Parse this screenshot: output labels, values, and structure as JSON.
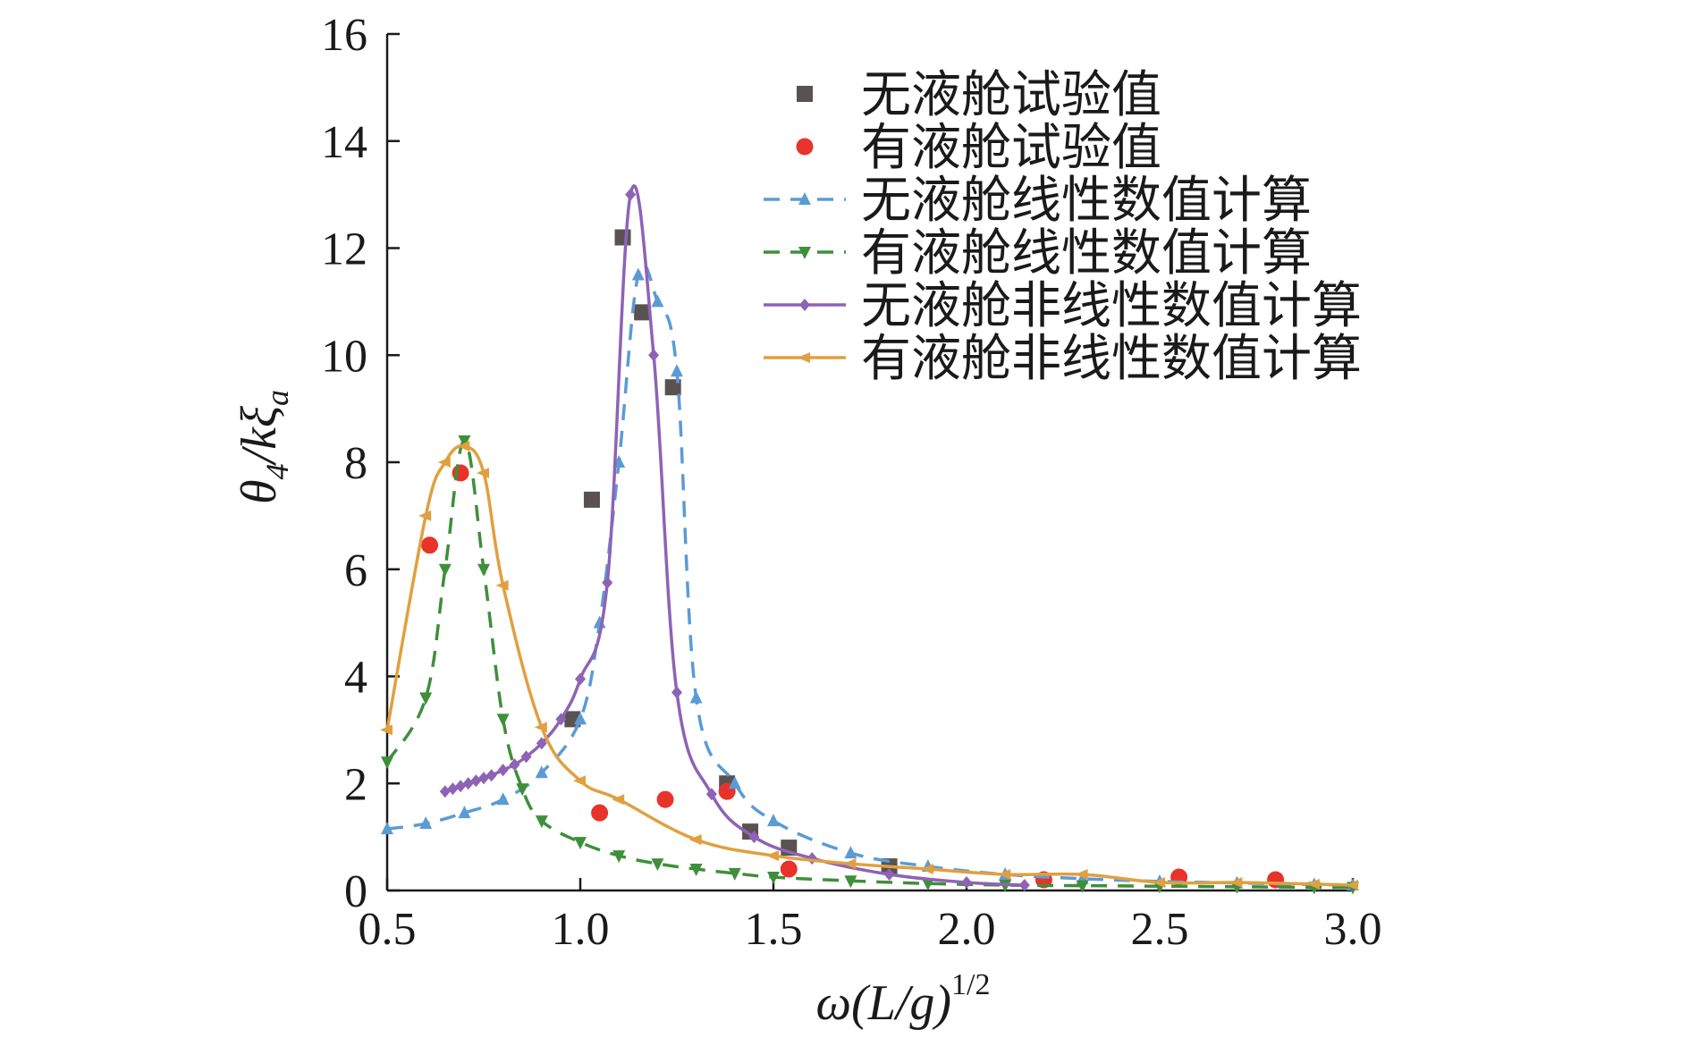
{
  "chart_data": {
    "type": "line",
    "xlabel": "ω(L/g)",
    "xlabel_sup": "1/2",
    "ylabel": "θ",
    "ylabel_sub": "4",
    "ylabel_rest": "/kξ",
    "ylabel_sub2": "a",
    "xlim": [
      0.5,
      3.0
    ],
    "ylim": [
      0,
      16
    ],
    "xticks": [
      "0.5",
      "1.0",
      "1.5",
      "2.0",
      "2.5",
      "3.0"
    ],
    "yticks": [
      "0",
      "2",
      "4",
      "6",
      "8",
      "10",
      "12",
      "14",
      "16"
    ],
    "grid": false,
    "legend_position": "top-right",
    "series": [
      {
        "name": "无液舱试验值",
        "kind": "scatter",
        "marker": "square",
        "color": "#595251",
        "x": [
          0.98,
          1.03,
          1.11,
          1.16,
          1.24,
          1.38,
          1.44,
          1.54,
          1.8
        ],
        "y": [
          3.2,
          7.3,
          12.2,
          10.8,
          9.4,
          2.0,
          1.1,
          0.8,
          0.45
        ]
      },
      {
        "name": "有液舱试验值",
        "kind": "scatter",
        "marker": "circle",
        "color": "#e8332a",
        "x": [
          0.61,
          0.69,
          1.05,
          1.22,
          1.38,
          1.54,
          2.2,
          2.55,
          2.8
        ],
        "y": [
          6.45,
          7.8,
          1.45,
          1.7,
          1.85,
          0.4,
          0.2,
          0.25,
          0.2
        ]
      },
      {
        "name": "无液舱线性数值计算",
        "kind": "line",
        "dash": true,
        "marker": "triangle-up",
        "color": "#5b9bd5",
        "x": [
          0.5,
          0.6,
          0.7,
          0.8,
          0.9,
          1.0,
          1.05,
          1.1,
          1.15,
          1.2,
          1.25,
          1.3,
          1.4,
          1.5,
          1.7,
          1.9,
          2.1,
          2.3,
          2.5,
          2.7,
          2.9,
          3.0
        ],
        "y": [
          1.15,
          1.25,
          1.45,
          1.7,
          2.2,
          3.2,
          5.0,
          8.0,
          11.5,
          11.0,
          9.7,
          3.6,
          2.0,
          1.3,
          0.7,
          0.45,
          0.3,
          0.22,
          0.17,
          0.14,
          0.11,
          0.1
        ]
      },
      {
        "name": "有液舱线性数值计算",
        "kind": "line",
        "dash": true,
        "marker": "triangle-down",
        "color": "#3f8f3a",
        "x": [
          0.5,
          0.6,
          0.65,
          0.7,
          0.75,
          0.8,
          0.85,
          0.9,
          1.0,
          1.1,
          1.2,
          1.3,
          1.4,
          1.5,
          1.7,
          1.9,
          2.1,
          2.3,
          2.5,
          2.7,
          2.9,
          3.0
        ],
        "y": [
          2.4,
          3.6,
          6.0,
          8.4,
          6.0,
          3.2,
          1.9,
          1.3,
          0.9,
          0.65,
          0.5,
          0.4,
          0.32,
          0.25,
          0.18,
          0.13,
          0.1,
          0.09,
          0.08,
          0.07,
          0.06,
          0.06
        ]
      },
      {
        "name": "无液舱非线性数值计算",
        "kind": "line",
        "dash": false,
        "marker": "diamond",
        "color": "#8e63b5",
        "x": [
          0.65,
          0.67,
          0.69,
          0.71,
          0.73,
          0.75,
          0.77,
          0.8,
          0.83,
          0.86,
          0.9,
          0.95,
          1.0,
          1.07,
          1.13,
          1.19,
          1.25,
          1.34,
          1.45,
          1.6,
          1.8,
          2.0,
          2.15
        ],
        "y": [
          1.85,
          1.9,
          1.95,
          2.0,
          2.05,
          2.1,
          2.15,
          2.25,
          2.35,
          2.5,
          2.75,
          3.2,
          3.95,
          5.75,
          13.0,
          10.0,
          3.7,
          1.8,
          1.0,
          0.6,
          0.3,
          0.15,
          0.1
        ]
      },
      {
        "name": "有液舱非线性数值计算",
        "kind": "line",
        "dash": false,
        "marker": "triangle-left",
        "color": "#e0a040",
        "x": [
          0.5,
          0.6,
          0.65,
          0.7,
          0.75,
          0.8,
          0.9,
          1.0,
          1.1,
          1.3,
          1.5,
          1.7,
          1.9,
          2.1,
          2.3,
          2.5,
          2.7,
          2.9,
          3.0
        ],
        "y": [
          3.0,
          7.0,
          8.0,
          8.3,
          7.8,
          5.7,
          3.05,
          2.05,
          1.7,
          0.95,
          0.65,
          0.5,
          0.4,
          0.3,
          0.3,
          0.15,
          0.15,
          0.12,
          0.1
        ]
      }
    ]
  }
}
